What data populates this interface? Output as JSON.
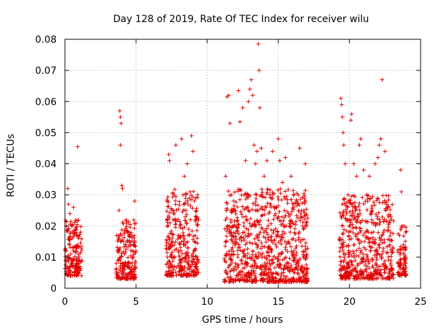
{
  "chart_data": {
    "type": "scatter",
    "title": "Day 128 of 2019, Rate Of TEC Index for receiver wilu",
    "xlabel": "GPS time / hours",
    "ylabel": "ROTI / TECUs",
    "xlim": [
      0,
      25
    ],
    "ylim": [
      0,
      0.08
    ],
    "x_ticks": [
      0,
      5,
      10,
      15,
      20,
      25
    ],
    "x_tick_labels": [
      "0",
      "5",
      "10",
      "15",
      "20",
      "25"
    ],
    "y_ticks": [
      0,
      0.01,
      0.02,
      0.03,
      0.04,
      0.05,
      0.06,
      0.07,
      0.08
    ],
    "y_tick_labels": [
      "0",
      "0.01",
      "0.02",
      "0.03",
      "0.04",
      "0.05",
      "0.06",
      "0.07",
      "0.08"
    ],
    "grid": true,
    "marker": "+",
    "color": "#e00000",
    "series": [
      {
        "name": "ROTI",
        "points": [
          [
            0.05,
            0.009
          ],
          [
            0.1,
            0.012
          ],
          [
            0.15,
            0.007
          ],
          [
            0.2,
            0.032
          ],
          [
            0.25,
            0.027
          ],
          [
            0.3,
            0.014
          ],
          [
            0.35,
            0.024
          ],
          [
            0.4,
            0.011
          ],
          [
            0.45,
            0.008
          ],
          [
            0.5,
            0.02
          ],
          [
            0.55,
            0.013
          ],
          [
            0.6,
            0.026
          ],
          [
            0.65,
            0.005
          ],
          [
            0.7,
            0.018
          ],
          [
            0.9,
            0.0455
          ],
          [
            1.0,
            0.01
          ],
          [
            1.05,
            0.007
          ],
          [
            3.6,
            0.006
          ],
          [
            3.7,
            0.012
          ],
          [
            3.8,
            0.025
          ],
          [
            3.85,
            0.057
          ],
          [
            3.9,
            0.055
          ],
          [
            3.95,
            0.053
          ],
          [
            3.9,
            0.046
          ],
          [
            4.0,
            0.033
          ],
          [
            4.05,
            0.032
          ],
          [
            4.1,
            0.015
          ],
          [
            4.2,
            0.011
          ],
          [
            4.3,
            0.022
          ],
          [
            4.4,
            0.008
          ],
          [
            4.5,
            0.018
          ],
          [
            4.6,
            0.014
          ],
          [
            4.7,
            0.006
          ],
          [
            4.8,
            0.01
          ],
          [
            4.9,
            0.028
          ],
          [
            5.0,
            0.012
          ],
          [
            7.2,
            0.01
          ],
          [
            7.3,
            0.043
          ],
          [
            7.35,
            0.041
          ],
          [
            7.4,
            0.008
          ],
          [
            7.5,
            0.015
          ],
          [
            7.6,
            0.022
          ],
          [
            7.8,
            0.046
          ],
          [
            8.0,
            0.012
          ],
          [
            8.2,
            0.048
          ],
          [
            8.3,
            0.03
          ],
          [
            8.4,
            0.036
          ],
          [
            8.5,
            0.025
          ],
          [
            8.6,
            0.04
          ],
          [
            8.7,
            0.019
          ],
          [
            8.8,
            0.031
          ],
          [
            8.9,
            0.049
          ],
          [
            9.0,
            0.044
          ],
          [
            9.1,
            0.015
          ],
          [
            9.2,
            0.029
          ],
          [
            9.3,
            0.01
          ],
          [
            7.6,
            0.007
          ],
          [
            8.1,
            0.009
          ],
          [
            8.6,
            0.011
          ],
          [
            9.15,
            0.007
          ],
          [
            11.3,
            0.036
          ],
          [
            11.4,
            0.0615
          ],
          [
            11.5,
            0.062
          ],
          [
            11.6,
            0.053
          ],
          [
            11.7,
            0.03
          ],
          [
            11.8,
            0.02
          ],
          [
            12.0,
            0.008
          ],
          [
            12.2,
            0.0635
          ],
          [
            12.3,
            0.0535
          ],
          [
            12.5,
            0.058
          ],
          [
            12.7,
            0.041
          ],
          [
            12.9,
            0.06
          ],
          [
            13.0,
            0.064
          ],
          [
            13.1,
            0.067
          ],
          [
            13.2,
            0.062
          ],
          [
            13.3,
            0.046
          ],
          [
            13.4,
            0.04
          ],
          [
            13.5,
            0.044
          ],
          [
            13.6,
            0.0785
          ],
          [
            13.65,
            0.07
          ],
          [
            13.7,
            0.058
          ],
          [
            13.8,
            0.045
          ],
          [
            14.0,
            0.036
          ],
          [
            14.2,
            0.041
          ],
          [
            14.4,
            0.03
          ],
          [
            14.6,
            0.044
          ],
          [
            14.8,
            0.024
          ],
          [
            15.0,
            0.048
          ],
          [
            15.1,
            0.041
          ],
          [
            15.3,
            0.034
          ],
          [
            15.5,
            0.042
          ],
          [
            15.7,
            0.015
          ],
          [
            15.9,
            0.036
          ],
          [
            16.1,
            0.012
          ],
          [
            16.3,
            0.028
          ],
          [
            16.5,
            0.045
          ],
          [
            16.7,
            0.02
          ],
          [
            16.9,
            0.04
          ],
          [
            17.0,
            0.01
          ],
          [
            12.1,
            0.004
          ],
          [
            13.9,
            0.003
          ],
          [
            15.2,
            0.004
          ],
          [
            16.0,
            0.006
          ],
          [
            14.3,
            0.013
          ],
          [
            12.6,
            0.018
          ],
          [
            19.4,
            0.061
          ],
          [
            19.45,
            0.059
          ],
          [
            19.5,
            0.055
          ],
          [
            19.55,
            0.05
          ],
          [
            19.6,
            0.046
          ],
          [
            19.7,
            0.04
          ],
          [
            19.9,
            0.03
          ],
          [
            20.0,
            0.022
          ],
          [
            20.1,
            0.054
          ],
          [
            20.15,
            0.056
          ],
          [
            20.3,
            0.04
          ],
          [
            20.5,
            0.036
          ],
          [
            20.7,
            0.046
          ],
          [
            20.8,
            0.048
          ],
          [
            21.0,
            0.038
          ],
          [
            21.2,
            0.03
          ],
          [
            21.4,
            0.036
          ],
          [
            21.6,
            0.025
          ],
          [
            21.8,
            0.04
          ],
          [
            22.0,
            0.042
          ],
          [
            22.1,
            0.046
          ],
          [
            22.2,
            0.048
          ],
          [
            22.3,
            0.067
          ],
          [
            22.5,
            0.044
          ],
          [
            22.7,
            0.026
          ],
          [
            22.9,
            0.018
          ],
          [
            23.0,
            0.006
          ],
          [
            20.4,
            0.004
          ],
          [
            21.5,
            0.005
          ],
          [
            22.6,
            0.007
          ],
          [
            23.5,
            0.007
          ],
          [
            23.6,
            0.038
          ],
          [
            23.65,
            0.031
          ],
          [
            23.7,
            0.02
          ],
          [
            23.8,
            0.014
          ],
          [
            23.9,
            0.01
          ],
          [
            23.95,
            0.018
          ],
          [
            23.6,
            0.008
          ]
        ]
      }
    ],
    "dense_clusters": [
      {
        "x_range": [
          0.0,
          1.2
        ],
        "y_range": [
          0.004,
          0.022
        ]
      },
      {
        "x_range": [
          3.6,
          5.0
        ],
        "y_range": [
          0.003,
          0.022
        ]
      },
      {
        "x_range": [
          7.1,
          9.4
        ],
        "y_range": [
          0.004,
          0.032
        ]
      },
      {
        "x_range": [
          11.2,
          17.1
        ],
        "y_range": [
          0.002,
          0.032
        ]
      },
      {
        "x_range": [
          19.3,
          23.1
        ],
        "y_range": [
          0.003,
          0.03
        ]
      },
      {
        "x_range": [
          23.4,
          24.0
        ],
        "y_range": [
          0.004,
          0.02
        ]
      }
    ]
  }
}
